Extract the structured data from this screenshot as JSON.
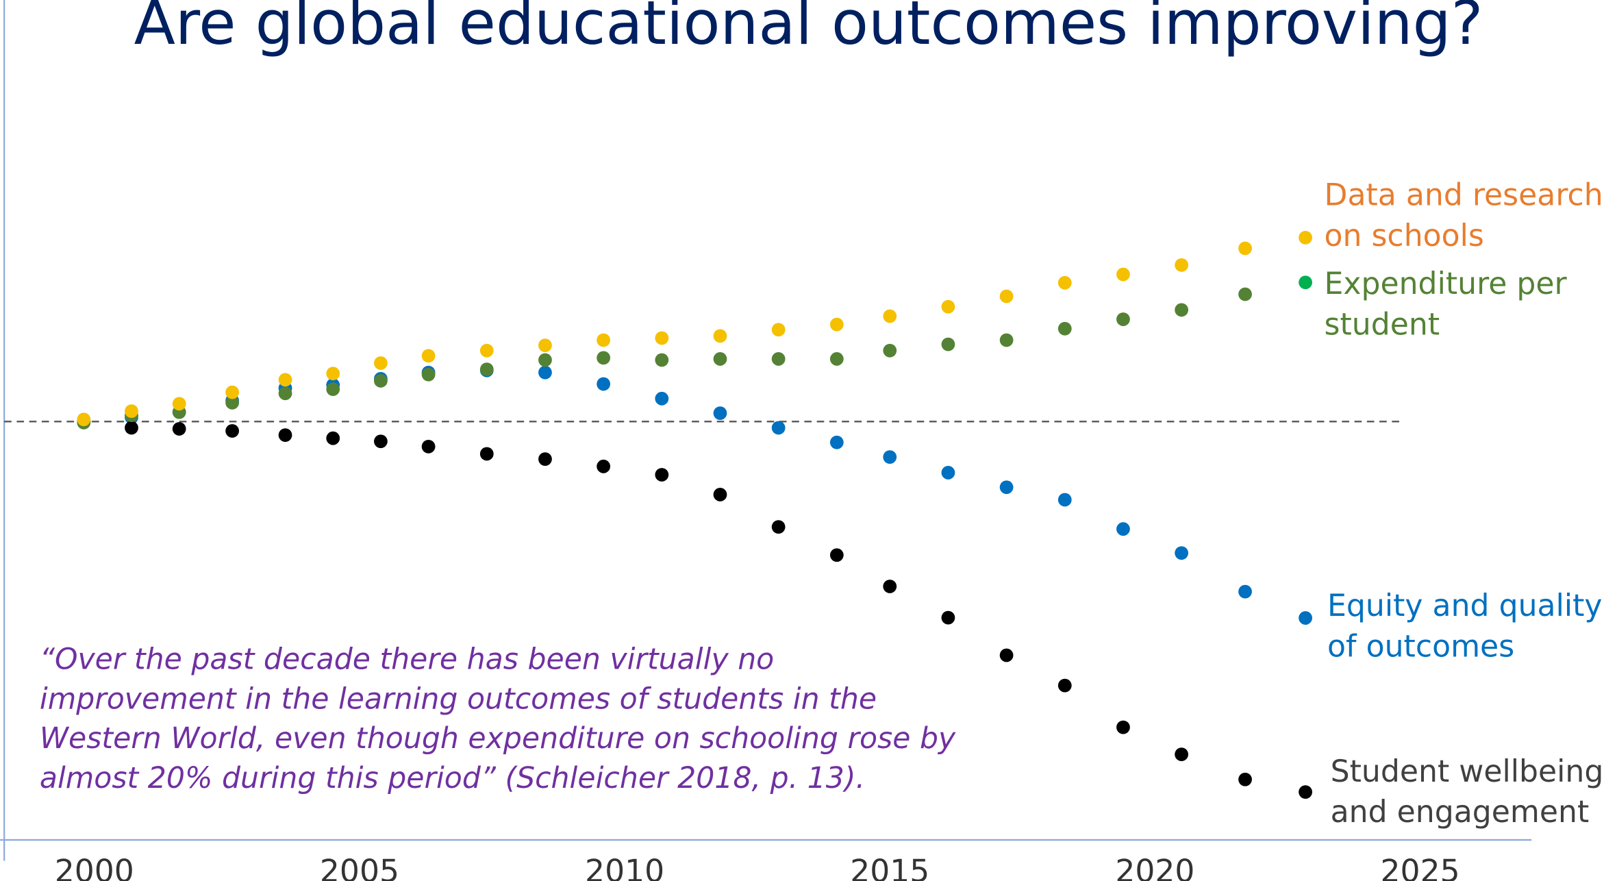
{
  "chart_data": {
    "type": "scatter",
    "title": "Are global educational outcomes improving?",
    "annotation": "“Over the past decade there has been virtually no improvement in the learning outcomes of students in the Western World, even though expenditure on schooling rose by almost 20% during this period” (Schleicher 2018, p. 13).",
    "x": [
      1999.8,
      2000.7,
      2001.6,
      2002.6,
      2003.6,
      2004.5,
      2005.4,
      2006.3,
      2007.4,
      2008.5,
      2009.6,
      2010.7,
      2011.8,
      2012.9,
      2014.0,
      2015.0,
      2016.1,
      2017.2,
      2018.3,
      2019.4,
      2020.5,
      2021.7
    ],
    "series": [
      {
        "name": "Equity and quality of outcomes",
        "color": "#0070c0",
        "label_color": "#0070c0",
        "values": [
          0,
          4,
          9,
          20,
          32,
          35,
          41,
          47,
          49,
          47,
          36,
          22,
          8,
          -6,
          -20,
          -34,
          -49,
          -63,
          -75,
          -103,
          -126,
          -163
        ]
      },
      {
        "name": "Student wellbeing and engagement",
        "color": "#000000",
        "label_color": "#404040",
        "values": [
          0,
          -6,
          -7,
          -9,
          -13,
          -16,
          -19,
          -24,
          -31,
          -36,
          -43,
          -51,
          -70,
          -101,
          -128,
          -158,
          -188,
          -224,
          -253,
          -293,
          -319,
          -343
        ]
      },
      {
        "name": "Expenditure per student",
        "color": "#548235",
        "marker_color": "#00b050",
        "label_color": "#548235",
        "values": [
          -1,
          6,
          9,
          18,
          27,
          31,
          39,
          45,
          50,
          59,
          61,
          59,
          60,
          60,
          60,
          68,
          74,
          78,
          89,
          98,
          107,
          122
        ]
      },
      {
        "name": "Data and research on schools",
        "color": "#f5c000",
        "label_color": "#e87d2e",
        "values": [
          2,
          10,
          17,
          28,
          40,
          46,
          56,
          63,
          68,
          73,
          78,
          80,
          82,
          88,
          93,
          101,
          110,
          120,
          133,
          141,
          150,
          166
        ]
      }
    ],
    "reference_line": 0,
    "xlim": [
      1998.3,
      2027.1
    ],
    "xticks": [
      2000,
      2005,
      2010,
      2015,
      2020,
      2025
    ],
    "ylim": [
      -400,
      400
    ]
  }
}
